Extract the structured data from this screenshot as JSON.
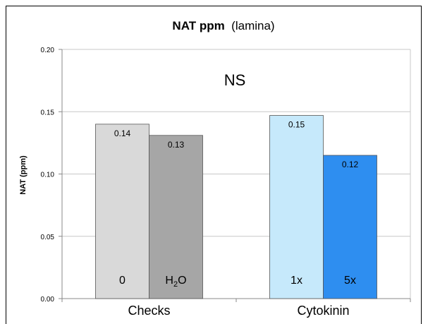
{
  "chart_data": {
    "type": "bar",
    "title": "NAT ppm",
    "subtitle": "(lamina)",
    "ylabel": "NAT (ppm)",
    "xlabel": "",
    "ylim": [
      0,
      0.2
    ],
    "yticks": [
      "0.00",
      "0.05",
      "0.10",
      "0.15",
      "0.20"
    ],
    "grid": true,
    "annotation": "NS",
    "groups": [
      {
        "category": "Checks",
        "bars": [
          {
            "label": "0",
            "value": 0.14,
            "data_label": "0.14",
            "color": "#d9d9d9"
          },
          {
            "label": "H",
            "label_sub": "2",
            "label_tail": "O",
            "value": 0.131,
            "data_label": "0.13",
            "color": "#a6a6a6"
          }
        ]
      },
      {
        "category": "Cytokinin",
        "bars": [
          {
            "label": "1x",
            "value": 0.147,
            "data_label": "0.15",
            "color": "#c6e9fb"
          },
          {
            "label": "5x",
            "value": 0.115,
            "data_label": "0.12",
            "color": "#2e8ef0"
          }
        ]
      }
    ]
  }
}
